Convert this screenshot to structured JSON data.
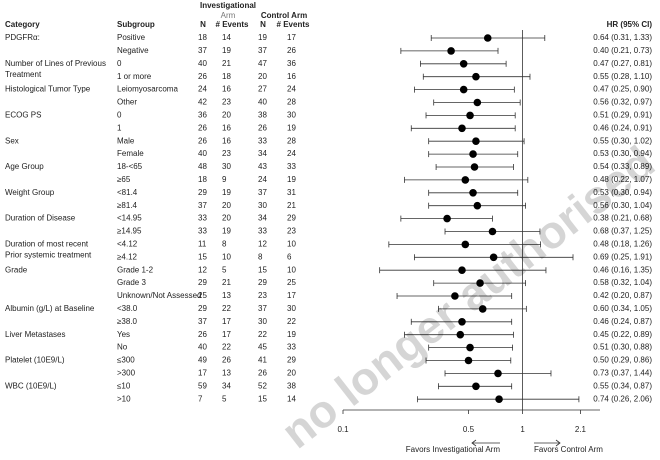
{
  "chart_data": {
    "type": "forest",
    "headers": {
      "category": "Category",
      "subgroup": "Subgroup",
      "inv_arm": [
        "Investigational",
        "Arm"
      ],
      "ctrl_arm": "Control Arm",
      "n": "N",
      "events": "# Events",
      "hr": "HR (95% CI)"
    },
    "groups": [
      {
        "name": [
          "PDGFRα:"
        ],
        "rows": [
          {
            "subgroup": "Positive",
            "inv_n": 18,
            "inv_events": 14,
            "ctrl_n": 19,
            "ctrl_events": 17,
            "hr": 0.64,
            "lo": 0.31,
            "hi": 1.33,
            "label": "0.64 (0.31, 1.33)"
          },
          {
            "subgroup": "Negative",
            "inv_n": 37,
            "inv_events": 19,
            "ctrl_n": 37,
            "ctrl_events": 26,
            "hr": 0.4,
            "lo": 0.21,
            "hi": 0.73,
            "label": "0.40 (0.21, 0.73)"
          }
        ]
      },
      {
        "name": [
          "Number of Lines of Previous",
          "Treatment"
        ],
        "rows": [
          {
            "subgroup": "0",
            "inv_n": 40,
            "inv_events": 21,
            "ctrl_n": 47,
            "ctrl_events": 36,
            "hr": 0.47,
            "lo": 0.27,
            "hi": 0.81,
            "label": "0.47 (0.27, 0.81)"
          },
          {
            "subgroup": "1 or more",
            "inv_n": 26,
            "inv_events": 18,
            "ctrl_n": 20,
            "ctrl_events": 16,
            "hr": 0.55,
            "lo": 0.28,
            "hi": 1.1,
            "label": "0.55 (0.28, 1.10)"
          }
        ]
      },
      {
        "name": [
          "Histological Tumor Type"
        ],
        "rows": [
          {
            "subgroup": "Leiomyosarcoma",
            "inv_n": 24,
            "inv_events": 16,
            "ctrl_n": 27,
            "ctrl_events": 24,
            "hr": 0.47,
            "lo": 0.25,
            "hi": 0.9,
            "label": "0.47 (0.25, 0.90)"
          },
          {
            "subgroup": "Other",
            "inv_n": 42,
            "inv_events": 23,
            "ctrl_n": 40,
            "ctrl_events": 28,
            "hr": 0.56,
            "lo": 0.32,
            "hi": 0.97,
            "label": "0.56 (0.32, 0.97)"
          }
        ]
      },
      {
        "name": [
          "ECOG PS"
        ],
        "rows": [
          {
            "subgroup": "0",
            "inv_n": 36,
            "inv_events": 20,
            "ctrl_n": 38,
            "ctrl_events": 30,
            "hr": 0.51,
            "lo": 0.29,
            "hi": 0.91,
            "label": "0.51 (0.29, 0.91)"
          },
          {
            "subgroup": "1",
            "inv_n": 26,
            "inv_events": 16,
            "ctrl_n": 26,
            "ctrl_events": 19,
            "hr": 0.46,
            "lo": 0.24,
            "hi": 0.91,
            "label": "0.46 (0.24, 0.91)"
          }
        ]
      },
      {
        "name": [
          "Sex"
        ],
        "rows": [
          {
            "subgroup": "Male",
            "inv_n": 26,
            "inv_events": 16,
            "ctrl_n": 33,
            "ctrl_events": 28,
            "hr": 0.55,
            "lo": 0.3,
            "hi": 1.02,
            "label": "0.55 (0.30, 1.02)"
          },
          {
            "subgroup": "Female",
            "inv_n": 40,
            "inv_events": 23,
            "ctrl_n": 34,
            "ctrl_events": 24,
            "hr": 0.53,
            "lo": 0.3,
            "hi": 0.94,
            "label": "0.53 (0.30, 0.94)"
          }
        ]
      },
      {
        "name": [
          "Age Group"
        ],
        "rows": [
          {
            "subgroup": "18-<65",
            "inv_n": 48,
            "inv_events": 30,
            "ctrl_n": 43,
            "ctrl_events": 33,
            "hr": 0.54,
            "lo": 0.33,
            "hi": 0.89,
            "label": "0.54 (0.33, 0.89)"
          },
          {
            "subgroup": "≥65",
            "inv_n": 18,
            "inv_events": 9,
            "ctrl_n": 24,
            "ctrl_events": 19,
            "hr": 0.48,
            "lo": 0.22,
            "hi": 1.07,
            "label": "0.48 (0.22, 1.07)"
          }
        ]
      },
      {
        "name": [
          "Weight Group"
        ],
        "rows": [
          {
            "subgroup": "<81.4",
            "inv_n": 29,
            "inv_events": 19,
            "ctrl_n": 37,
            "ctrl_events": 31,
            "hr": 0.53,
            "lo": 0.3,
            "hi": 0.94,
            "label": "0.53 (0.30, 0.94)"
          },
          {
            "subgroup": "≥81.4",
            "inv_n": 37,
            "inv_events": 20,
            "ctrl_n": 30,
            "ctrl_events": 21,
            "hr": 0.56,
            "lo": 0.3,
            "hi": 1.04,
            "label": "0.56 (0.30, 1.04)"
          }
        ]
      },
      {
        "name": [
          "Duration of Disease"
        ],
        "rows": [
          {
            "subgroup": "<14.95",
            "inv_n": 33,
            "inv_events": 20,
            "ctrl_n": 34,
            "ctrl_events": 29,
            "hr": 0.38,
            "lo": 0.21,
            "hi": 0.68,
            "label": "0.38 (0.21, 0.68)"
          },
          {
            "subgroup": "≥14.95",
            "inv_n": 33,
            "inv_events": 19,
            "ctrl_n": 33,
            "ctrl_events": 23,
            "hr": 0.68,
            "lo": 0.37,
            "hi": 1.25,
            "label": "0.68 (0.37, 1.25)"
          }
        ]
      },
      {
        "name": [
          "Duration of most recent",
          "Prior systemic treatment"
        ],
        "rows": [
          {
            "subgroup": "<4.12",
            "inv_n": 11,
            "inv_events": 8,
            "ctrl_n": 12,
            "ctrl_events": 10,
            "hr": 0.48,
            "lo": 0.18,
            "hi": 1.26,
            "label": "0.48 (0.18, 1.26)"
          },
          {
            "subgroup": "≥4.12",
            "inv_n": 15,
            "inv_events": 10,
            "ctrl_n": 8,
            "ctrl_events": 6,
            "hr": 0.69,
            "lo": 0.25,
            "hi": 1.91,
            "label": "0.69 (0.25, 1.91)"
          }
        ]
      },
      {
        "name": [
          "Grade"
        ],
        "rows": [
          {
            "subgroup": "Grade 1-2",
            "inv_n": 12,
            "inv_events": 5,
            "ctrl_n": 15,
            "ctrl_events": 10,
            "hr": 0.46,
            "lo": 0.16,
            "hi": 1.35,
            "label": "0.46 (0.16, 1.35)"
          },
          {
            "subgroup": "Grade 3",
            "inv_n": 29,
            "inv_events": 21,
            "ctrl_n": 29,
            "ctrl_events": 25,
            "hr": 0.58,
            "lo": 0.32,
            "hi": 1.04,
            "label": "0.58 (0.32, 1.04)"
          },
          {
            "subgroup": "Unknown/Not Assessed",
            "inv_n": 25,
            "inv_events": 13,
            "ctrl_n": 23,
            "ctrl_events": 17,
            "hr": 0.42,
            "lo": 0.2,
            "hi": 0.87,
            "label": "0.42 (0.20, 0.87)"
          }
        ]
      },
      {
        "name": [
          "Albumin (g/L) at Baseline"
        ],
        "rows": [
          {
            "subgroup": "<38.0",
            "inv_n": 29,
            "inv_events": 22,
            "ctrl_n": 37,
            "ctrl_events": 30,
            "hr": 0.6,
            "lo": 0.34,
            "hi": 1.05,
            "label": "0.60 (0.34, 1.05)"
          },
          {
            "subgroup": "≥38.0",
            "inv_n": 37,
            "inv_events": 17,
            "ctrl_n": 30,
            "ctrl_events": 22,
            "hr": 0.46,
            "lo": 0.24,
            "hi": 0.87,
            "label": "0.46 (0.24, 0.87)"
          }
        ]
      },
      {
        "name": [
          "Liver Metastases"
        ],
        "rows": [
          {
            "subgroup": "Yes",
            "inv_n": 26,
            "inv_events": 17,
            "ctrl_n": 22,
            "ctrl_events": 19,
            "hr": 0.45,
            "lo": 0.22,
            "hi": 0.89,
            "label": "0.45 (0.22, 0.89)"
          },
          {
            "subgroup": "No",
            "inv_n": 40,
            "inv_events": 22,
            "ctrl_n": 45,
            "ctrl_events": 33,
            "hr": 0.51,
            "lo": 0.3,
            "hi": 0.88,
            "label": "0.51 (0.30, 0.88)"
          }
        ]
      },
      {
        "name": [
          "Platelet (10E9/L)"
        ],
        "rows": [
          {
            "subgroup": "≤300",
            "inv_n": 49,
            "inv_events": 26,
            "ctrl_n": 41,
            "ctrl_events": 29,
            "hr": 0.5,
            "lo": 0.29,
            "hi": 0.86,
            "label": "0.50 (0.29, 0.86)"
          },
          {
            "subgroup": ">300",
            "inv_n": 17,
            "inv_events": 13,
            "ctrl_n": 26,
            "ctrl_events": 20,
            "hr": 0.73,
            "lo": 0.37,
            "hi": 1.44,
            "label": "0.73 (0.37, 1.44)"
          }
        ]
      },
      {
        "name": [
          "WBC (10E9/L)"
        ],
        "rows": [
          {
            "subgroup": "≤10",
            "inv_n": 59,
            "inv_events": 34,
            "ctrl_n": 52,
            "ctrl_events": 38,
            "hr": 0.55,
            "lo": 0.34,
            "hi": 0.87,
            "label": "0.55 (0.34, 0.87)"
          },
          {
            "subgroup": ">10",
            "inv_n": 7,
            "inv_events": 5,
            "ctrl_n": 15,
            "ctrl_events": 14,
            "hr": 0.74,
            "lo": 0.26,
            "hi": 2.06,
            "label": "0.74 (0.26, 2.06)"
          }
        ]
      }
    ],
    "log_x": true,
    "xlim": [
      0.1,
      2.7
    ],
    "xticks": [
      0.1,
      0.5,
      1,
      2.1
    ],
    "reference_line": 1,
    "favors_left": "Favors Investigational Arm",
    "favors_right": "Favors Control Arm",
    "watermark": "no longer authorised"
  }
}
